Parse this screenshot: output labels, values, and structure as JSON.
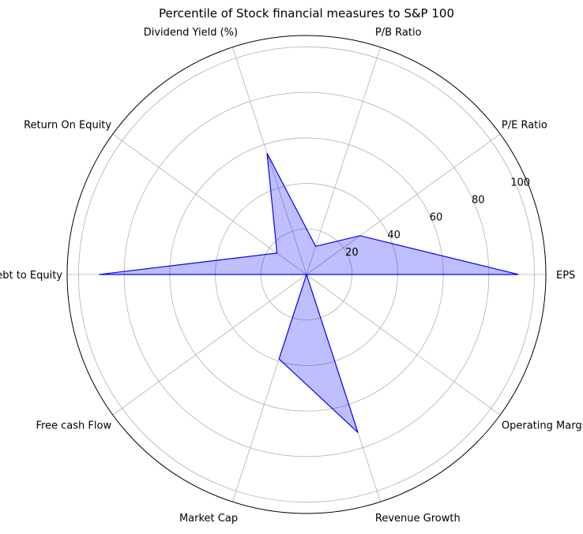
{
  "chart_data": {
    "type": "radar",
    "title": "Percentile of Stock financial measures to S&P 100",
    "categories": [
      "EPS",
      "P/E Ratio",
      "P/B Ratio",
      "Dividend Yield (%)",
      "Return On Equity",
      "Debt to Equity",
      "Free cash Flow",
      "Market Cap",
      "Revenue Growth",
      "Operating Margin"
    ],
    "series": [
      {
        "values": [
          93,
          29,
          13,
          56,
          16,
          91,
          0,
          39,
          73,
          0
        ]
      }
    ],
    "rlim": [
      0,
      105
    ],
    "r_ticks": [
      20,
      40,
      60,
      80,
      100
    ],
    "grid": true,
    "colors": {
      "line": "#0000ff",
      "fill": "#0000ff",
      "grid": "#b0b0b0",
      "spine": "#000000"
    }
  }
}
